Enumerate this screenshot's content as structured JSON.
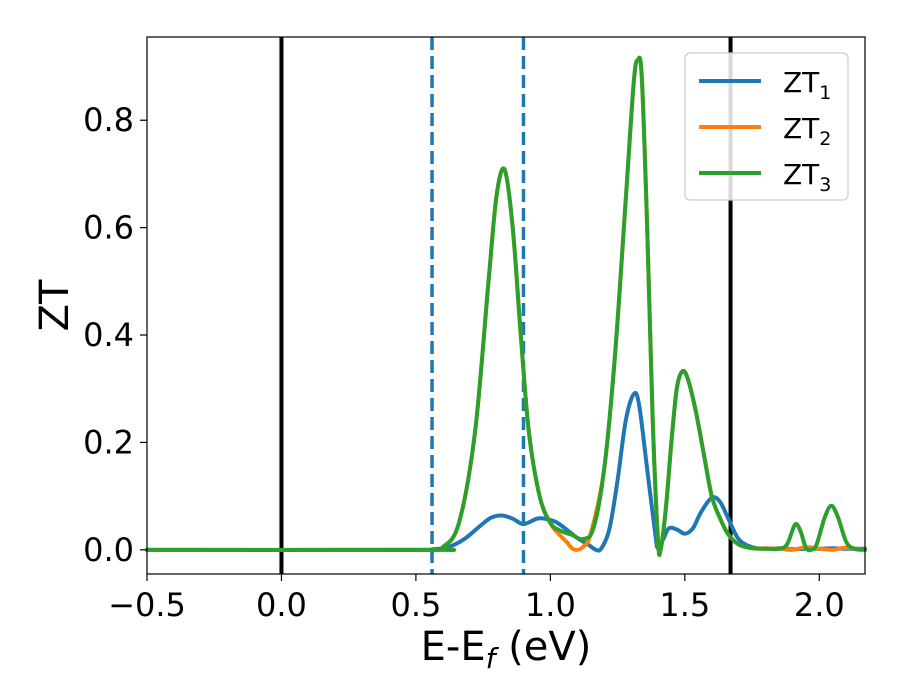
{
  "chart_data": {
    "type": "line",
    "xlabel": "E-E",
    "xlabel_sub": "f",
    "xlabel_unit": " (eV)",
    "ylabel": "ZT",
    "xlim": [
      -0.5,
      2.17
    ],
    "ylim": [
      -0.045,
      0.955
    ],
    "xticks": [
      -0.5,
      0.0,
      0.5,
      1.0,
      1.5,
      2.0
    ],
    "xtick_labels": [
      "−0.5",
      "0.0",
      "0.5",
      "1.0",
      "1.5",
      "2.0"
    ],
    "yticks": [
      0.0,
      0.2,
      0.4,
      0.6,
      0.8
    ],
    "ytick_labels": [
      "0.0",
      "0.2",
      "0.4",
      "0.6",
      "0.8"
    ],
    "grid": false,
    "legend_position": "top-right",
    "vlines": [
      {
        "x": 0.0,
        "color": "#000000",
        "style": "solid"
      },
      {
        "x": 1.67,
        "color": "#000000",
        "style": "solid"
      },
      {
        "x": 0.56,
        "color": "#1f77b4",
        "style": "dashed"
      },
      {
        "x": 0.9,
        "color": "#1f77b4",
        "style": "dashed"
      }
    ],
    "series": [
      {
        "name": "ZT",
        "name_sub": "1",
        "color": "#1f77b4",
        "points": [
          [
            -0.5,
            0
          ],
          [
            0.5,
            0
          ],
          [
            0.56,
            0.001
          ],
          [
            0.62,
            0.005
          ],
          [
            0.68,
            0.02
          ],
          [
            0.74,
            0.045
          ],
          [
            0.78,
            0.06
          ],
          [
            0.82,
            0.064
          ],
          [
            0.86,
            0.058
          ],
          [
            0.9,
            0.048
          ],
          [
            0.95,
            0.058
          ],
          [
            0.98,
            0.058
          ],
          [
            1.02,
            0.052
          ],
          [
            1.06,
            0.038
          ],
          [
            1.1,
            0.022
          ],
          [
            1.14,
            0.01
          ],
          [
            1.17,
            0.0
          ],
          [
            1.19,
            0.003
          ],
          [
            1.22,
            0.04
          ],
          [
            1.25,
            0.13
          ],
          [
            1.28,
            0.24
          ],
          [
            1.31,
            0.29
          ],
          [
            1.33,
            0.27
          ],
          [
            1.36,
            0.15
          ],
          [
            1.39,
            0.03
          ],
          [
            1.4,
            0.003
          ],
          [
            1.42,
            0.02
          ],
          [
            1.44,
            0.04
          ],
          [
            1.47,
            0.038
          ],
          [
            1.5,
            0.03
          ],
          [
            1.53,
            0.04
          ],
          [
            1.56,
            0.07
          ],
          [
            1.6,
            0.097
          ],
          [
            1.63,
            0.09
          ],
          [
            1.66,
            0.06
          ],
          [
            1.7,
            0.02
          ],
          [
            1.75,
            0.005
          ],
          [
            1.8,
            0.002
          ],
          [
            1.85,
            0.003
          ],
          [
            1.9,
            0.001
          ],
          [
            1.95,
            0.002
          ],
          [
            2.0,
            0.002
          ],
          [
            2.05,
            0.003
          ],
          [
            2.1,
            0.002
          ],
          [
            2.17,
            0.002
          ]
        ]
      },
      {
        "name": "ZT",
        "name_sub": "2",
        "color": "#ff7f0e",
        "points": [
          [
            -0.5,
            0
          ],
          [
            0.55,
            0
          ],
          [
            0.6,
            0.005
          ],
          [
            0.66,
            0.05
          ],
          [
            0.72,
            0.22
          ],
          [
            0.77,
            0.5
          ],
          [
            0.8,
            0.66
          ],
          [
            0.83,
            0.708
          ],
          [
            0.86,
            0.6
          ],
          [
            0.89,
            0.4
          ],
          [
            0.92,
            0.22
          ],
          [
            0.96,
            0.1
          ],
          [
            1.0,
            0.05
          ],
          [
            1.03,
            0.03
          ],
          [
            1.06,
            0.015
          ],
          [
            1.08,
            0.003
          ],
          [
            1.1,
            0.0
          ],
          [
            1.12,
            0.005
          ],
          [
            1.15,
            0.03
          ],
          [
            1.2,
            0.15
          ],
          [
            1.24,
            0.36
          ],
          [
            1.28,
            0.65
          ],
          [
            1.31,
            0.87
          ],
          [
            1.325,
            0.912
          ],
          [
            1.34,
            0.88
          ],
          [
            1.36,
            0.6
          ],
          [
            1.38,
            0.25
          ],
          [
            1.4,
            0.02
          ],
          [
            1.41,
            0.0
          ],
          [
            1.43,
            0.08
          ],
          [
            1.45,
            0.2
          ],
          [
            1.47,
            0.3
          ],
          [
            1.49,
            0.332
          ],
          [
            1.51,
            0.32
          ],
          [
            1.54,
            0.26
          ],
          [
            1.57,
            0.18
          ],
          [
            1.6,
            0.1
          ],
          [
            1.63,
            0.06
          ],
          [
            1.66,
            0.03
          ],
          [
            1.7,
            0.01
          ],
          [
            1.75,
            0.003
          ],
          [
            1.8,
            0.003
          ],
          [
            1.85,
            0.002
          ],
          [
            1.9,
            0.0
          ],
          [
            1.95,
            0.005
          ],
          [
            2.0,
            0.002
          ],
          [
            2.05,
            0.0
          ],
          [
            2.1,
            0.004
          ],
          [
            2.17,
            0.0
          ]
        ]
      },
      {
        "name": "ZT",
        "name_sub": "3",
        "color": "#2ca02c",
        "points": [
          [
            -0.5,
            0
          ],
          [
            0.55,
            0
          ],
          [
            0.6,
            0.005
          ],
          [
            0.66,
            0.05
          ],
          [
            0.72,
            0.22
          ],
          [
            0.77,
            0.5
          ],
          [
            0.8,
            0.66
          ],
          [
            0.83,
            0.708
          ],
          [
            0.86,
            0.6
          ],
          [
            0.89,
            0.4
          ],
          [
            0.92,
            0.22
          ],
          [
            0.96,
            0.1
          ],
          [
            1.0,
            0.05
          ],
          [
            1.04,
            0.035
          ],
          [
            1.08,
            0.028
          ],
          [
            1.12,
            0.02
          ],
          [
            1.16,
            0.04
          ],
          [
            1.2,
            0.15
          ],
          [
            1.24,
            0.36
          ],
          [
            1.28,
            0.65
          ],
          [
            1.31,
            0.87
          ],
          [
            1.325,
            0.912
          ],
          [
            1.34,
            0.88
          ],
          [
            1.36,
            0.6
          ],
          [
            1.38,
            0.25
          ],
          [
            1.4,
            0.02
          ],
          [
            1.41,
            0.0
          ],
          [
            1.43,
            0.08
          ],
          [
            1.45,
            0.2
          ],
          [
            1.47,
            0.3
          ],
          [
            1.49,
            0.332
          ],
          [
            1.51,
            0.32
          ],
          [
            1.54,
            0.26
          ],
          [
            1.57,
            0.18
          ],
          [
            1.6,
            0.1
          ],
          [
            1.63,
            0.06
          ],
          [
            1.66,
            0.03
          ],
          [
            1.7,
            0.01
          ],
          [
            1.75,
            0.003
          ],
          [
            1.8,
            0.002
          ],
          [
            1.85,
            0.002
          ],
          [
            1.88,
            0.01
          ],
          [
            1.91,
            0.047
          ],
          [
            1.93,
            0.035
          ],
          [
            1.95,
            0.004
          ],
          [
            1.97,
            0.0
          ],
          [
            1.99,
            0.01
          ],
          [
            2.02,
            0.06
          ],
          [
            2.045,
            0.082
          ],
          [
            2.07,
            0.06
          ],
          [
            2.1,
            0.015
          ],
          [
            2.13,
            0.002
          ],
          [
            2.17,
            0.0
          ]
        ]
      }
    ]
  }
}
